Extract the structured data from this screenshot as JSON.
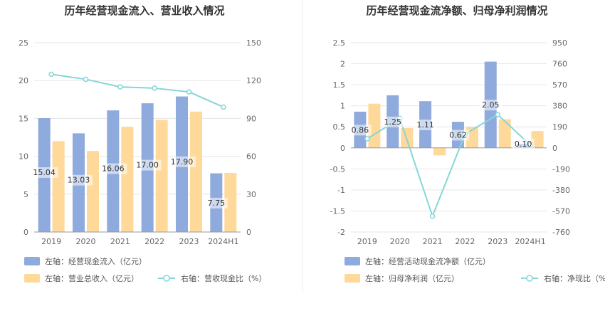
{
  "chart_data": [
    {
      "type": "bar",
      "title": "历年经营现金流入、营业收入情况",
      "categories": [
        "2019",
        "2020",
        "2021",
        "2022",
        "2023",
        "2024H1"
      ],
      "left_axis": {
        "ylim": [
          0,
          25
        ],
        "ticks": [
          "0",
          "5",
          "10",
          "15",
          "20",
          "25"
        ]
      },
      "right_axis": {
        "ylim": [
          0,
          150
        ],
        "ticks": [
          "0",
          "30",
          "60",
          "90",
          "120",
          "150"
        ]
      },
      "series": [
        {
          "name": "左轴：经营现金流入（亿元）",
          "axis": "left",
          "kind": "bar",
          "color": "#8faadc",
          "values": [
            15.04,
            13.03,
            16.06,
            17.0,
            17.9,
            7.75
          ],
          "labels": [
            "15.04",
            "13.03",
            "16.06",
            "17.00",
            "17.90",
            "7.75"
          ]
        },
        {
          "name": "左轴：营业总收入（亿元）",
          "axis": "left",
          "kind": "bar",
          "color": "#ffd999",
          "values": [
            12.0,
            10.7,
            13.9,
            14.8,
            15.9,
            7.8
          ]
        },
        {
          "name": "右轴：营收现金比（%）",
          "axis": "right",
          "kind": "line",
          "color": "#86d6d8",
          "values": [
            125.0,
            121.0,
            115.0,
            114.0,
            111.0,
            99.0
          ]
        }
      ],
      "legend_placement": "bottom-left",
      "grid": true
    },
    {
      "type": "bar",
      "title": "历年经营现金流净额、归母净利润情况",
      "categories": [
        "2019",
        "2020",
        "2021",
        "2022",
        "2023",
        "2024H1"
      ],
      "left_axis": {
        "ylim": [
          -2,
          2.5
        ],
        "ticks": [
          "-2",
          "-1.5",
          "-1",
          "-0.5",
          "0",
          "0.5",
          "1",
          "1.5",
          "2",
          "2.5"
        ]
      },
      "right_axis": {
        "ylim": [
          -760,
          950
        ],
        "ticks": [
          "-760",
          "-570",
          "-380",
          "-190",
          "0",
          "190",
          "380",
          "570",
          "760",
          "950"
        ]
      },
      "series": [
        {
          "name": "左轴：经营活动现金流净额（亿元）",
          "axis": "left",
          "kind": "bar",
          "color": "#8faadc",
          "values": [
            0.86,
            1.25,
            1.11,
            0.62,
            2.05,
            0.1
          ],
          "labels": [
            "0.86",
            "1.25",
            "1.11",
            "0.62",
            "2.05",
            "0.10"
          ]
        },
        {
          "name": "左轴：归母净利润（亿元）",
          "axis": "left",
          "kind": "bar",
          "color": "#ffd999",
          "values": [
            1.05,
            0.47,
            -0.18,
            0.5,
            0.68,
            0.4
          ]
        },
        {
          "name": "右轴：净现比（%）",
          "axis": "right",
          "kind": "line",
          "color": "#86d6d8",
          "values": [
            82.0,
            266.0,
            -617.0,
            124.0,
            301.0,
            25.0
          ]
        }
      ],
      "legend_placement": "bottom-left",
      "grid": true
    }
  ]
}
